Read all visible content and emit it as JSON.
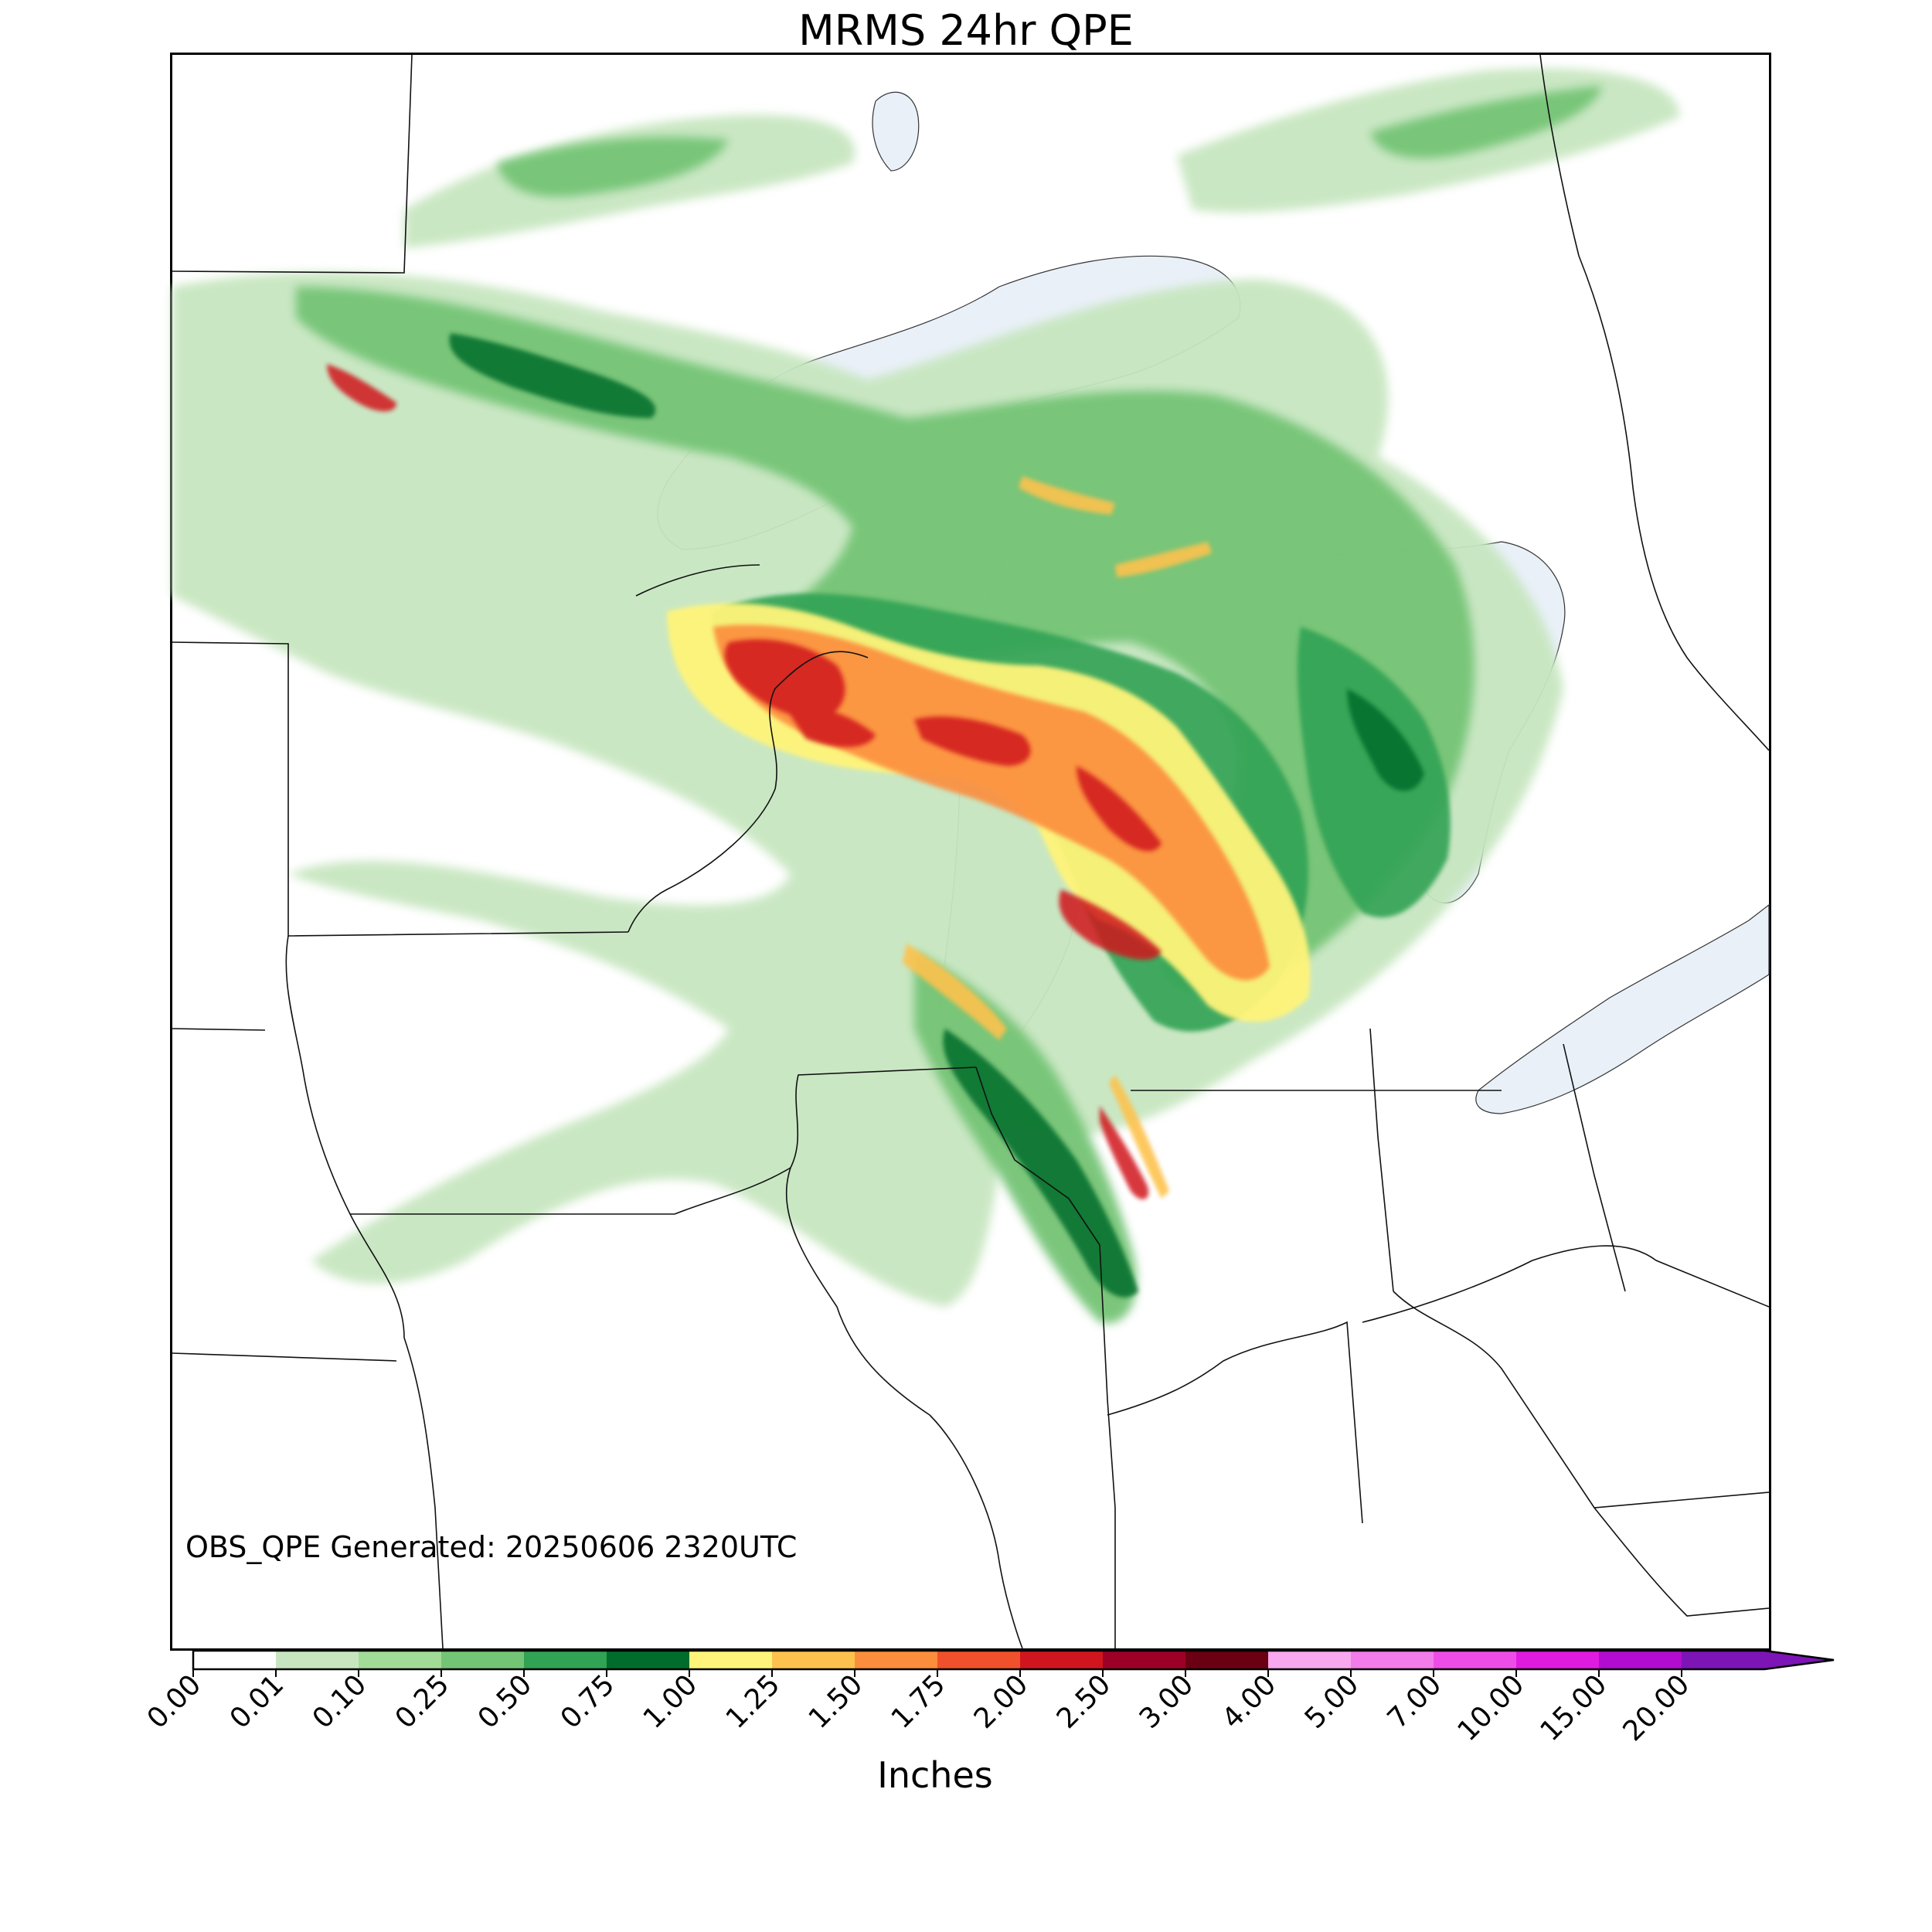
{
  "title": "MRMS 24hr QPE",
  "generated_text": "OBS_QPE Generated: 20250606 2320UTC",
  "colorbar": {
    "label": "Inches",
    "ticks": [
      "0.00",
      "0.01",
      "0.10",
      "0.25",
      "0.50",
      "0.75",
      "1.00",
      "1.25",
      "1.50",
      "1.75",
      "2.00",
      "2.50",
      "3.00",
      "4.00",
      "5.00",
      "7.00",
      "10.00",
      "15.00",
      "20.00"
    ],
    "colors": [
      "#ffffff",
      "#c7e6c0",
      "#a1db97",
      "#74c476",
      "#31a354",
      "#006d2c",
      "#fff47a",
      "#fdc24d",
      "#fc8d3c",
      "#f1502c",
      "#d0151f",
      "#9c0026",
      "#6b0012",
      "#f7a8ef",
      "#f27ce9",
      "#ed4de6",
      "#df1be0",
      "#b20cd0",
      "#7c14b6"
    ],
    "extend": "max"
  },
  "map": {
    "land_color": "#ffffff",
    "water_color": "#e9f0f8",
    "border_color": "#000000"
  }
}
